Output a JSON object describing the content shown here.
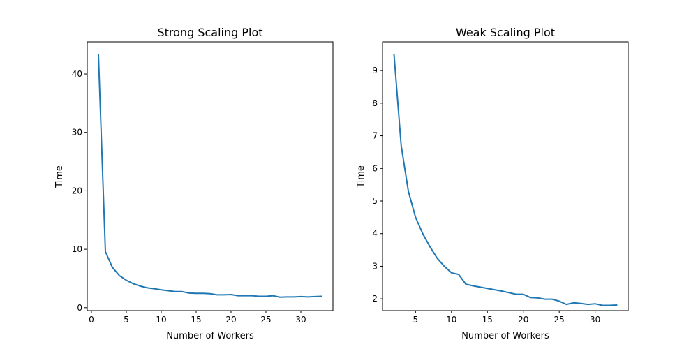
{
  "chart_data": [
    {
      "type": "line",
      "title": "Strong Scaling Plot",
      "xlabel": "Number of Workers",
      "ylabel": "Time",
      "xlim": [
        -0.6,
        34.6
      ],
      "ylim": [
        -0.5,
        45.5
      ],
      "xticks": [
        0,
        5,
        10,
        15,
        20,
        25,
        30
      ],
      "yticks": [
        0,
        10,
        20,
        30,
        40
      ],
      "grid": false,
      "series": [
        {
          "color": "#1f77b4",
          "x": [
            1,
            2,
            3,
            4,
            5,
            6,
            7,
            8,
            9,
            10,
            11,
            12,
            13,
            14,
            15,
            16,
            17,
            18,
            19,
            20,
            21,
            22,
            23,
            24,
            25,
            26,
            27,
            28,
            29,
            30,
            31,
            32,
            33
          ],
          "y": [
            43.3,
            9.6,
            6.9,
            5.5,
            4.7,
            4.1,
            3.7,
            3.4,
            3.25,
            3.05,
            2.9,
            2.75,
            2.75,
            2.5,
            2.45,
            2.45,
            2.4,
            2.2,
            2.2,
            2.25,
            2.05,
            2.05,
            2.05,
            1.95,
            1.95,
            2.05,
            1.8,
            1.85,
            1.85,
            1.9,
            1.85,
            1.9,
            1.95
          ]
        }
      ]
    },
    {
      "type": "line",
      "title": "Weak Scaling Plot",
      "xlabel": "Number of Workers",
      "ylabel": "Time",
      "xlim": [
        0.4,
        34.6
      ],
      "ylim": [
        1.64,
        9.88
      ],
      "xticks": [
        5,
        10,
        15,
        20,
        25,
        30
      ],
      "yticks": [
        2,
        3,
        4,
        5,
        6,
        7,
        8,
        9
      ],
      "grid": false,
      "series": [
        {
          "color": "#1f77b4",
          "x": [
            2,
            3,
            4,
            5,
            6,
            7,
            8,
            9,
            10,
            11,
            12,
            13,
            14,
            15,
            16,
            17,
            18,
            19,
            20,
            21,
            22,
            23,
            24,
            25,
            26,
            27,
            28,
            29,
            30,
            31,
            32,
            33
          ],
          "y": [
            9.5,
            6.7,
            5.3,
            4.5,
            4.0,
            3.6,
            3.25,
            3.0,
            2.8,
            2.75,
            2.45,
            2.4,
            2.36,
            2.32,
            2.28,
            2.24,
            2.19,
            2.14,
            2.14,
            2.04,
            2.03,
            1.99,
            1.99,
            1.93,
            1.83,
            1.88,
            1.86,
            1.83,
            1.85,
            1.8,
            1.8,
            1.81
          ]
        }
      ]
    }
  ]
}
